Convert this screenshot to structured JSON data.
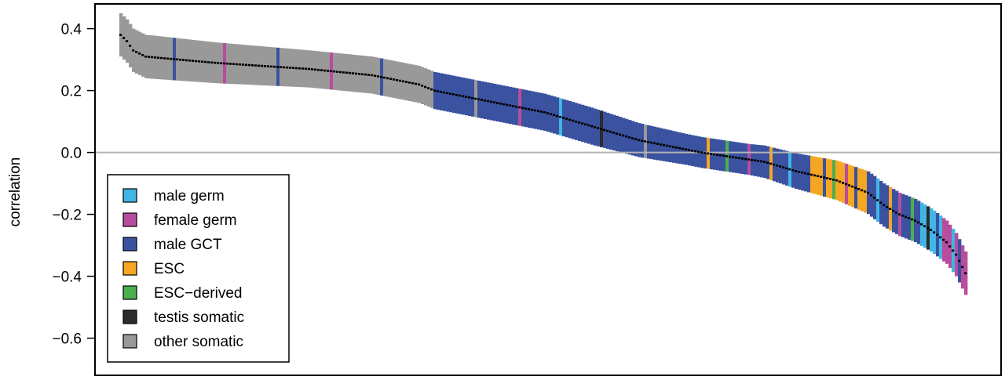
{
  "chart_data": {
    "type": "bar",
    "ylabel": "correlation",
    "xlabel": "",
    "ylim": [
      -0.72,
      0.48
    ],
    "yticks": [
      -0.6,
      -0.4,
      -0.2,
      0.0,
      0.2,
      0.4
    ],
    "ytick_labels": [
      "−0.6",
      "−0.4",
      "−0.2",
      "0.0",
      "0.2",
      "0.4"
    ],
    "reference_line": 0.0,
    "reference_line_color": "#b3b3b3",
    "series_colors": {
      "male_germ": "#41b6e6",
      "female_germ": "#b84d9e",
      "male_gct": "#3a52a0",
      "esc": "#f5a623",
      "esc_derived": "#4caf50",
      "testis_somatic": "#2b2b2b",
      "other_somatic": "#999999"
    },
    "legend": {
      "placement": "bottom-left",
      "items": [
        {
          "key": "male_germ",
          "label": "male germ",
          "color": "#41b6e6"
        },
        {
          "key": "female_germ",
          "label": "female germ",
          "color": "#b84d9e"
        },
        {
          "key": "male_gct",
          "label": "male GCT",
          "color": "#3a52a0"
        },
        {
          "key": "esc",
          "label": "ESC",
          "color": "#f5a623"
        },
        {
          "key": "esc_derived",
          "label": "ESC−derived",
          "color": "#4caf50"
        },
        {
          "key": "testis_somatic",
          "label": "testis somatic",
          "color": "#2b2b2b"
        },
        {
          "key": "other_somatic",
          "label": "other somatic",
          "color": "#999999"
        }
      ]
    },
    "n_samples": 270,
    "description_of_points": "Samples sorted by decreasing median correlation; each sample shown as a vertical interval bar colored by group with the median marked in black",
    "median_profile": [
      [
        0,
        0.38
      ],
      [
        2,
        0.36
      ],
      [
        4,
        0.33
      ],
      [
        8,
        0.31
      ],
      [
        30,
        0.29
      ],
      [
        60,
        0.27
      ],
      [
        80,
        0.25
      ],
      [
        95,
        0.22
      ],
      [
        100,
        0.2
      ],
      [
        115,
        0.17
      ],
      [
        135,
        0.13
      ],
      [
        145,
        0.1
      ],
      [
        155,
        0.07
      ],
      [
        165,
        0.04
      ],
      [
        175,
        0.02
      ],
      [
        185,
        0.0
      ],
      [
        205,
        -0.03
      ],
      [
        215,
        -0.06
      ],
      [
        228,
        -0.09
      ],
      [
        238,
        -0.13
      ],
      [
        243,
        -0.17
      ],
      [
        248,
        -0.2
      ],
      [
        253,
        -0.22
      ],
      [
        258,
        -0.25
      ],
      [
        263,
        -0.29
      ],
      [
        266,
        -0.33
      ],
      [
        268,
        -0.37
      ],
      [
        270,
        -0.41
      ]
    ],
    "halfwidth_profile": [
      [
        0,
        0.07
      ],
      [
        10,
        0.07
      ],
      [
        60,
        0.06
      ],
      [
        100,
        0.06
      ],
      [
        150,
        0.06
      ],
      [
        180,
        0.05
      ],
      [
        200,
        0.05
      ],
      [
        220,
        0.06
      ],
      [
        240,
        0.07
      ],
      [
        260,
        0.07
      ],
      [
        270,
        0.07
      ]
    ],
    "group_segments": [
      {
        "start": 0,
        "end": 100,
        "group": "other_somatic",
        "accents": [
          "male_gct",
          "female_germ",
          "male_gct",
          "female_germ",
          "male_gct"
        ]
      },
      {
        "start": 100,
        "end": 180,
        "group": "male_gct",
        "accents": [
          "other_somatic",
          "female_germ",
          "male_germ",
          "testis_somatic",
          "other_somatic"
        ]
      },
      {
        "start": 180,
        "end": 220,
        "group": "male_gct",
        "accents": [
          "esc",
          "esc_derived",
          "female_germ",
          "esc",
          "male_germ"
        ]
      },
      {
        "start": 220,
        "end": 238,
        "group": "esc",
        "accents": [
          "male_gct",
          "esc_derived",
          "female_germ",
          "male_gct"
        ]
      },
      {
        "start": 238,
        "end": 255,
        "group": "male_gct",
        "accents": [
          "male_germ",
          "esc",
          "female_germ",
          "esc_derived"
        ]
      },
      {
        "start": 255,
        "end": 262,
        "group": "male_germ",
        "accents": [
          "testis_somatic",
          "male_gct"
        ]
      },
      {
        "start": 262,
        "end": 270,
        "group": "female_germ",
        "accents": [
          "male_germ",
          "male_gct"
        ]
      }
    ]
  }
}
